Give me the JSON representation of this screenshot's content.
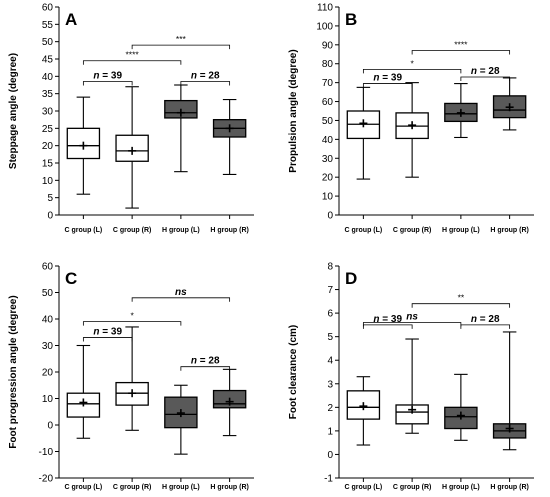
{
  "colors": {
    "c_group_fill": "#ffffff",
    "h_group_fill": "#595959",
    "stroke": "#000000"
  },
  "chart_data": [
    {
      "type": "box",
      "panel_label": "A",
      "ylabel": "Steppage angle (degree)",
      "ylim": [
        0,
        60
      ],
      "yticks": [
        0,
        5,
        10,
        15,
        20,
        25,
        30,
        35,
        40,
        45,
        50,
        55,
        60
      ],
      "categories": [
        "C group (L)",
        "C group (R)",
        "H group (L)",
        "H group (R)"
      ],
      "boxes": [
        {
          "group": "C",
          "min": 6,
          "q1": 16.3,
          "median": 20,
          "q3": 25,
          "max": 34,
          "mean": 20
        },
        {
          "group": "C",
          "min": 2,
          "q1": 15.5,
          "median": 18.5,
          "q3": 23,
          "max": 37,
          "mean": 18.5
        },
        {
          "group": "H",
          "min": 12.5,
          "q1": 28,
          "median": 29.5,
          "q3": 33,
          "max": 37.5,
          "mean": 29.5
        },
        {
          "group": "H",
          "min": 11.7,
          "q1": 22.5,
          "median": 25,
          "q3": 27.5,
          "max": 33.3,
          "mean": 25
        }
      ],
      "brackets": [
        {
          "from": 1,
          "to": 3,
          "y": 49,
          "label": "***"
        },
        {
          "from": 0,
          "to": 2,
          "y": 44.5,
          "label": "****"
        },
        {
          "from": 0,
          "to": 1,
          "y": 38.5,
          "label": "n = 39"
        },
        {
          "from": 2,
          "to": 3,
          "y": 38.5,
          "label": "n = 28"
        }
      ]
    },
    {
      "type": "box",
      "panel_label": "B",
      "ylabel": "Propulsion angle (degree)",
      "ylim": [
        0,
        110
      ],
      "yticks": [
        0,
        10,
        20,
        30,
        40,
        50,
        60,
        70,
        80,
        90,
        100,
        110
      ],
      "categories": [
        "C group (L)",
        "C group (R)",
        "H group (L)",
        "H group (R)"
      ],
      "boxes": [
        {
          "group": "C",
          "min": 19,
          "q1": 40.5,
          "median": 48,
          "q3": 55,
          "max": 67.5,
          "mean": 48.5
        },
        {
          "group": "C",
          "min": 20,
          "q1": 40.5,
          "median": 47,
          "q3": 54,
          "max": 70,
          "mean": 47.5
        },
        {
          "group": "H",
          "min": 41,
          "q1": 49.5,
          "median": 53.5,
          "q3": 59,
          "max": 69.5,
          "mean": 54
        },
        {
          "group": "H",
          "min": 45,
          "q1": 51.5,
          "median": 55.5,
          "q3": 63,
          "max": 72.5,
          "mean": 57
        }
      ],
      "brackets": [
        {
          "from": 1,
          "to": 3,
          "y": 87,
          "label": "****"
        },
        {
          "from": 0,
          "to": 2,
          "y": 77,
          "label": "*"
        },
        {
          "from": 0,
          "to": 1,
          "y": 69.5,
          "label": "n = 39"
        },
        {
          "from": 2,
          "to": 3,
          "y": 73,
          "label": "n = 28"
        }
      ]
    },
    {
      "type": "box",
      "panel_label": "C",
      "ylabel": "Foot progression angle (degree)",
      "ylim": [
        -20,
        60
      ],
      "yticks": [
        -20,
        -10,
        0,
        10,
        20,
        30,
        40,
        50,
        60
      ],
      "categories": [
        "C group (L)",
        "C group (R)",
        "H group (L)",
        "H group (R)"
      ],
      "boxes": [
        {
          "group": "C",
          "min": -5,
          "q1": 3,
          "median": 8,
          "q3": 12,
          "max": 30,
          "mean": 8.5
        },
        {
          "group": "C",
          "min": -2,
          "q1": 7.5,
          "median": 12,
          "q3": 16,
          "max": 37,
          "mean": 12
        },
        {
          "group": "H",
          "min": -11,
          "q1": -1,
          "median": 4,
          "q3": 10.5,
          "max": 15,
          "mean": 4.5
        },
        {
          "group": "H",
          "min": -4,
          "q1": 6.5,
          "median": 8,
          "q3": 13,
          "max": 21,
          "mean": 8.8
        }
      ],
      "brackets": [
        {
          "from": 1,
          "to": 3,
          "y": 48,
          "label": "ns"
        },
        {
          "from": 0,
          "to": 2,
          "y": 39,
          "label": "*"
        },
        {
          "from": 0,
          "to": 1,
          "y": 33,
          "label": "n = 39"
        },
        {
          "from": 2,
          "to": 3,
          "y": 22,
          "label": "n = 28"
        }
      ]
    },
    {
      "type": "box",
      "panel_label": "D",
      "ylabel": "Foot clearance (cm)",
      "ylim": [
        -1,
        8
      ],
      "yticks": [
        -1,
        0,
        1,
        2,
        3,
        4,
        5,
        6,
        7,
        8
      ],
      "categories": [
        "C group (L)",
        "C group (R)",
        "H group (L)",
        "H group (R)"
      ],
      "boxes": [
        {
          "group": "C",
          "min": 0.4,
          "q1": 1.5,
          "median": 2,
          "q3": 2.7,
          "max": 3.3,
          "mean": 2.05
        },
        {
          "group": "C",
          "min": 0.9,
          "q1": 1.3,
          "median": 1.8,
          "q3": 2.1,
          "max": 4.9,
          "mean": 1.9
        },
        {
          "group": "H",
          "min": 0.6,
          "q1": 1.1,
          "median": 1.6,
          "q3": 2,
          "max": 3.4,
          "mean": 1.65
        },
        {
          "group": "H",
          "min": 0.2,
          "q1": 0.7,
          "median": 1,
          "q3": 1.3,
          "max": 5.2,
          "mean": 1.1
        }
      ],
      "brackets": [
        {
          "from": 1,
          "to": 3,
          "y": 6.4,
          "label": "**"
        },
        {
          "from": 0,
          "to": 2,
          "y": 5.6,
          "label": "ns"
        },
        {
          "from": 0,
          "to": 1,
          "y": 5.5,
          "label": "n = 39"
        },
        {
          "from": 2,
          "to": 3,
          "y": 5.5,
          "label": "n = 28"
        }
      ]
    }
  ]
}
